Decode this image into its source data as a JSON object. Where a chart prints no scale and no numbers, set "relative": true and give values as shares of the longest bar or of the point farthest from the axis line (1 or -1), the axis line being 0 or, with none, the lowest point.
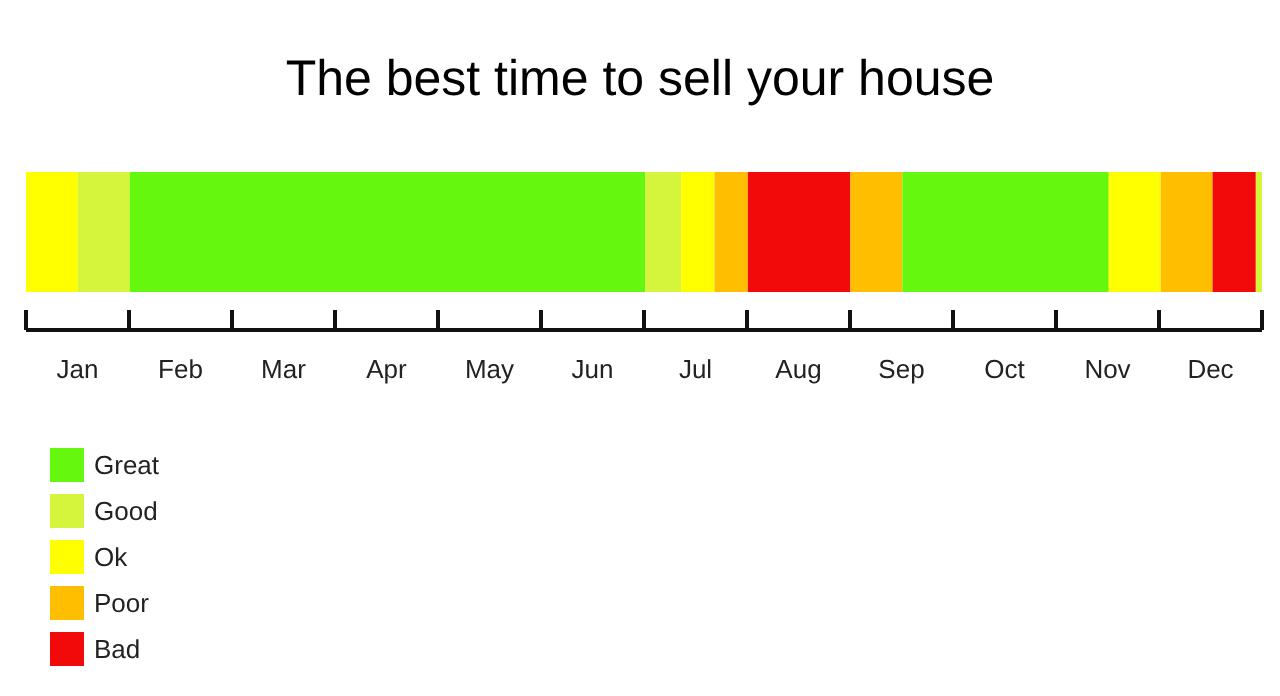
{
  "chart_data": {
    "type": "bar",
    "title": "The best time to sell your house",
    "orientation": "horizontal",
    "stacked": true,
    "relative": true,
    "categories": [
      null
    ],
    "series": [
      {
        "color": "#ffff00",
        "values": [
          0.042
        ]
      },
      {
        "color": "#d4f53c",
        "values": [
          0.042
        ]
      },
      {
        "name": "Great",
        "color": "#66f70f",
        "values": [
          0.417
        ]
      },
      {
        "name": "Good",
        "color": "#d4f53c",
        "values": [
          0.029
        ]
      },
      {
        "name": "Ok",
        "color": "#ffff00",
        "values": [
          0.027
        ]
      },
      {
        "name": "Poor",
        "color": "#ffbe00",
        "values": [
          0.027
        ]
      },
      {
        "name": "Bad",
        "color": "#f20a0a",
        "values": [
          0.083
        ]
      },
      {
        "color": "#ffbe00",
        "values": [
          0.042
        ]
      },
      {
        "color": "#66f70f",
        "values": [
          0.167
        ]
      },
      {
        "color": "#ffff00",
        "values": [
          0.042
        ]
      },
      {
        "color": "#ffbe00",
        "values": [
          0.042
        ]
      },
      {
        "color": "#f20a0a",
        "values": [
          0.035
        ]
      },
      {
        "color": "#d4f53c",
        "values": [
          0.005
        ]
      }
    ],
    "annotations": [
      "Jan",
      "Feb",
      "Mar",
      "Apr",
      "May",
      "Jun",
      "Jul",
      "Aug",
      "Sep",
      "Oct",
      "Nov",
      "Dec"
    ],
    "legend": "bottom left"
  }
}
